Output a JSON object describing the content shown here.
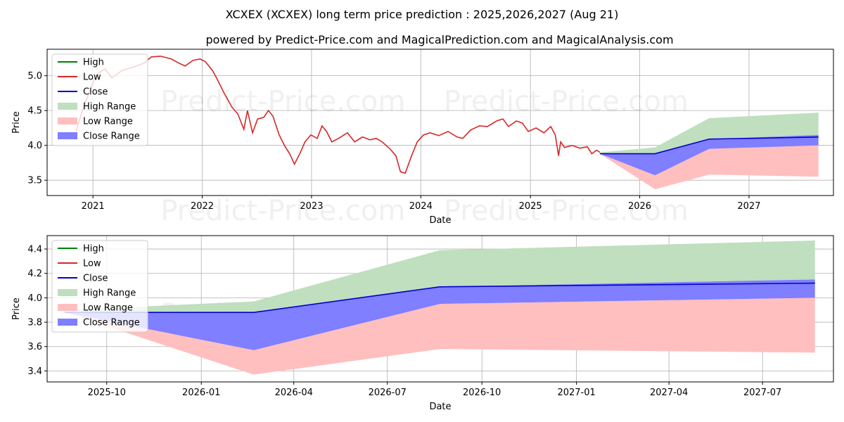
{
  "title": "XCXEX (XCXEX) long term price prediction : 2025,2026,2027 (Aug 21)",
  "subtitle": "powered by Predict-Price.com and MagicalPrediction.com and MagicalAnalysis.com",
  "watermark": "Predict-Price.com",
  "colors": {
    "high": "#008000",
    "low": "#d62728",
    "close": "#0000cc",
    "high_range": "#bfdfbf",
    "low_range": "#ffbfbf",
    "close_range": "#7f7fff",
    "grid": "#b0b0b0"
  },
  "legend": [
    "High",
    "Low",
    "Close",
    "High Range",
    "Low Range",
    "Close Range"
  ],
  "chart_data": [
    {
      "type": "line",
      "name": "top",
      "xlabel": "Date",
      "ylabel": "Price",
      "xlim": [
        "2020-08-01",
        "2027-10-10"
      ],
      "ylim": [
        3.28,
        5.38
      ],
      "xticks": [
        {
          "label": "2021",
          "date": "2021-01-01"
        },
        {
          "label": "2022",
          "date": "2022-01-01"
        },
        {
          "label": "2023",
          "date": "2023-01-01"
        },
        {
          "label": "2024",
          "date": "2024-01-01"
        },
        {
          "label": "2025",
          "date": "2025-01-01"
        },
        {
          "label": "2026",
          "date": "2026-01-01"
        },
        {
          "label": "2027",
          "date": "2027-01-01"
        }
      ],
      "yticks": [
        3.5,
        4.0,
        4.5,
        5.0
      ],
      "grid": true,
      "legend_position": "top-left",
      "history": [
        [
          "2020-11-05",
          4.2
        ],
        [
          "2020-12-01",
          4.55
        ],
        [
          "2021-01-10",
          5.0
        ],
        [
          "2021-02-10",
          5.1
        ],
        [
          "2021-03-05",
          4.97
        ],
        [
          "2021-04-10",
          5.08
        ],
        [
          "2021-05-15",
          5.12
        ],
        [
          "2021-06-20",
          5.18
        ],
        [
          "2021-07-15",
          5.27
        ],
        [
          "2021-08-15",
          5.28
        ],
        [
          "2021-09-20",
          5.24
        ],
        [
          "2021-10-15",
          5.18
        ],
        [
          "2021-11-05",
          5.14
        ],
        [
          "2021-12-01",
          5.22
        ],
        [
          "2021-12-25",
          5.24
        ],
        [
          "2022-01-12",
          5.2
        ],
        [
          "2022-02-05",
          5.07
        ],
        [
          "2022-02-20",
          4.95
        ],
        [
          "2022-03-15",
          4.75
        ],
        [
          "2022-04-10",
          4.55
        ],
        [
          "2022-04-30",
          4.45
        ],
        [
          "2022-05-20",
          4.23
        ],
        [
          "2022-06-01",
          4.5
        ],
        [
          "2022-06-18",
          4.18
        ],
        [
          "2022-07-05",
          4.38
        ],
        [
          "2022-07-25",
          4.4
        ],
        [
          "2022-08-10",
          4.5
        ],
        [
          "2022-08-25",
          4.42
        ],
        [
          "2022-09-15",
          4.15
        ],
        [
          "2022-10-05",
          3.98
        ],
        [
          "2022-10-20",
          3.88
        ],
        [
          "2022-11-05",
          3.73
        ],
        [
          "2022-11-25",
          3.9
        ],
        [
          "2022-12-10",
          4.05
        ],
        [
          "2022-12-30",
          4.15
        ],
        [
          "2023-01-20",
          4.1
        ],
        [
          "2023-02-05",
          4.28
        ],
        [
          "2023-02-20",
          4.2
        ],
        [
          "2023-03-10",
          4.05
        ],
        [
          "2023-04-01",
          4.1
        ],
        [
          "2023-05-01",
          4.18
        ],
        [
          "2023-05-25",
          4.05
        ],
        [
          "2023-06-20",
          4.12
        ],
        [
          "2023-07-15",
          4.08
        ],
        [
          "2023-08-05",
          4.1
        ],
        [
          "2023-08-25",
          4.05
        ],
        [
          "2023-09-20",
          3.95
        ],
        [
          "2023-10-10",
          3.85
        ],
        [
          "2023-10-25",
          3.62
        ],
        [
          "2023-11-10",
          3.6
        ],
        [
          "2023-12-01",
          3.85
        ],
        [
          "2023-12-20",
          4.05
        ],
        [
          "2024-01-10",
          4.15
        ],
        [
          "2024-02-01",
          4.18
        ],
        [
          "2024-03-01",
          4.14
        ],
        [
          "2024-04-01",
          4.2
        ],
        [
          "2024-05-01",
          4.12
        ],
        [
          "2024-05-20",
          4.1
        ],
        [
          "2024-06-15",
          4.22
        ],
        [
          "2024-07-15",
          4.28
        ],
        [
          "2024-08-10",
          4.27
        ],
        [
          "2024-09-10",
          4.35
        ],
        [
          "2024-10-01",
          4.38
        ],
        [
          "2024-10-20",
          4.27
        ],
        [
          "2024-11-15",
          4.35
        ],
        [
          "2024-12-05",
          4.32
        ],
        [
          "2024-12-25",
          4.2
        ],
        [
          "2025-01-20",
          4.25
        ],
        [
          "2025-02-15",
          4.18
        ],
        [
          "2025-03-10",
          4.27
        ],
        [
          "2025-03-25",
          4.15
        ],
        [
          "2025-04-05",
          3.85
        ],
        [
          "2025-04-12",
          4.05
        ],
        [
          "2025-04-25",
          3.97
        ],
        [
          "2025-05-20",
          4.0
        ],
        [
          "2025-06-15",
          3.96
        ],
        [
          "2025-07-10",
          3.98
        ],
        [
          "2025-07-25",
          3.88
        ],
        [
          "2025-08-10",
          3.93
        ],
        [
          "2025-08-21",
          3.9
        ]
      ],
      "forecast_dates": [
        "2025-08-21",
        "2026-02-21",
        "2026-08-21",
        "2027-08-21"
      ],
      "high_range_upper": [
        3.9,
        3.97,
        4.39,
        4.47
      ],
      "low_range_lower": [
        3.88,
        3.37,
        3.58,
        3.55
      ],
      "close_range_upper": [
        3.88,
        3.88,
        4.09,
        4.15
      ],
      "close_range_lower": [
        3.88,
        3.57,
        3.95,
        4.0
      ],
      "close": [
        3.88,
        3.88,
        4.09,
        4.12
      ]
    },
    {
      "type": "line",
      "name": "bottom",
      "xlabel": "Date",
      "ylabel": "Price",
      "xlim": [
        "2025-08-04",
        "2027-09-08"
      ],
      "ylim": [
        3.31,
        4.51
      ],
      "xticks": [
        {
          "label": "2025-10",
          "date": "2025-10-01"
        },
        {
          "label": "2026-01",
          "date": "2026-01-01"
        },
        {
          "label": "2026-04",
          "date": "2026-04-01"
        },
        {
          "label": "2026-07",
          "date": "2026-07-01"
        },
        {
          "label": "2026-10",
          "date": "2026-10-01"
        },
        {
          "label": "2027-01",
          "date": "2027-01-01"
        },
        {
          "label": "2027-04",
          "date": "2027-04-01"
        },
        {
          "label": "2027-07",
          "date": "2027-07-01"
        }
      ],
      "yticks": [
        3.4,
        3.6,
        3.8,
        4.0,
        4.2,
        4.4
      ],
      "grid": true,
      "legend_position": "top-left",
      "forecast_dates": [
        "2025-08-21",
        "2026-02-21",
        "2026-08-21",
        "2027-08-21"
      ],
      "high_range_upper": [
        3.9,
        3.97,
        4.39,
        4.47
      ],
      "low_range_lower": [
        3.88,
        3.37,
        3.58,
        3.55
      ],
      "close_range_upper": [
        3.88,
        3.88,
        4.09,
        4.15
      ],
      "close_range_lower": [
        3.88,
        3.57,
        3.95,
        4.0
      ],
      "close": [
        3.88,
        3.88,
        4.09,
        4.12
      ]
    }
  ]
}
